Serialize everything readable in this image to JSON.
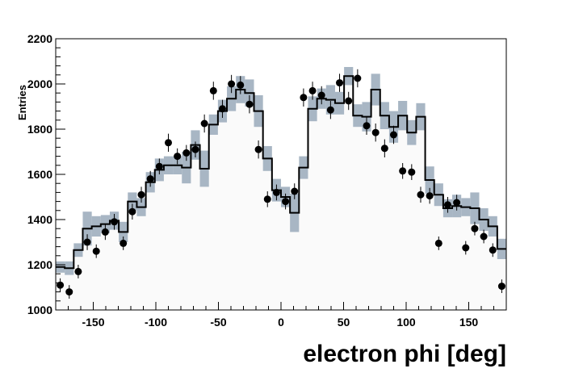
{
  "chart_data": {
    "type": "histogram",
    "title": "",
    "xlabel": "electron phi [deg]",
    "ylabel": "Entries",
    "xlim": [
      -180,
      180
    ],
    "ylim": [
      1000,
      2200
    ],
    "xticks": [
      -150,
      -100,
      -50,
      0,
      50,
      100,
      150
    ],
    "xtick_labels": [
      "-150",
      "-100",
      "-50",
      "0",
      "50",
      "100",
      "150"
    ],
    "yticks": [
      1000,
      1200,
      1400,
      1600,
      1800,
      2000,
      2200
    ],
    "ytick_labels": [
      "1000",
      "1200",
      "1400",
      "1600",
      "1800",
      "2000",
      "2200"
    ],
    "bin_width": 7.2,
    "bin_centers": [
      -176.4,
      -169.2,
      -162.0,
      -154.8,
      -147.6,
      -140.4,
      -133.2,
      -126.0,
      -118.8,
      -111.6,
      -104.4,
      -97.2,
      -90.0,
      -82.8,
      -75.6,
      -68.4,
      -61.2,
      -54.0,
      -46.8,
      -39.6,
      -32.4,
      -25.2,
      -18.0,
      -10.8,
      -3.6,
      3.6,
      10.8,
      18.0,
      25.2,
      32.4,
      39.6,
      46.8,
      54.0,
      61.2,
      68.4,
      75.6,
      82.8,
      90.0,
      97.2,
      104.4,
      111.6,
      118.8,
      126.0,
      133.2,
      140.4,
      147.6,
      154.8,
      162.0,
      169.2,
      176.4
    ],
    "series": [
      {
        "role": "simulation",
        "style": "step line with shaded uncertainty band",
        "values": [
          1190,
          1185,
          1265,
          1360,
          1370,
          1380,
          1395,
          1345,
          1480,
          1455,
          1565,
          1620,
          1640,
          1640,
          1630,
          1730,
          1625,
          1820,
          1880,
          1935,
          1975,
          1960,
          1880,
          1670,
          1530,
          1500,
          1430,
          1630,
          1890,
          1935,
          1930,
          1915,
          2035,
          1860,
          1855,
          1975,
          1860,
          1810,
          1860,
          1785,
          1855,
          1575,
          1510,
          1450,
          1460,
          1455,
          1450,
          1400,
          1370,
          1270
        ],
        "band_halfwidth": [
          25,
          30,
          30,
          75,
          45,
          40,
          40,
          45,
          40,
          40,
          45,
          50,
          40,
          40,
          70,
          65,
          80,
          45,
          50,
          55,
          60,
          60,
          70,
          55,
          50,
          45,
          85,
          50,
          55,
          45,
          65,
          50,
          40,
          50,
          65,
          70,
          60,
          70,
          65,
          55,
          60,
          60,
          50,
          40,
          50,
          40,
          70,
          50,
          45,
          45
        ]
      },
      {
        "role": "data",
        "style": "points with error bars",
        "values": [
          1110,
          1080,
          1170,
          1300,
          1260,
          1345,
          1390,
          1295,
          1435,
          1510,
          1580,
          1635,
          1740,
          1680,
          1695,
          1710,
          1825,
          1970,
          1890,
          2000,
          1995,
          1910,
          1710,
          1490,
          1520,
          1480,
          1525,
          1940,
          1970,
          1950,
          1885,
          2005,
          1925,
          2025,
          1815,
          1785,
          1715,
          1775,
          1615,
          1610,
          1510,
          1505,
          1295,
          1465,
          1475,
          1275,
          1360,
          1325,
          1265,
          1105
        ],
        "errors": [
          30,
          30,
          30,
          35,
          30,
          35,
          35,
          30,
          35,
          35,
          35,
          35,
          40,
          35,
          35,
          35,
          40,
          40,
          40,
          40,
          40,
          40,
          40,
          35,
          35,
          35,
          35,
          40,
          40,
          40,
          40,
          40,
          40,
          40,
          40,
          40,
          40,
          40,
          35,
          35,
          35,
          35,
          30,
          35,
          35,
          30,
          30,
          30,
          30,
          30
        ]
      }
    ],
    "colors": {
      "band": "#a8b6c4",
      "hist_fill": "#fafafa",
      "line": "#000000",
      "marker": "#000000"
    }
  }
}
